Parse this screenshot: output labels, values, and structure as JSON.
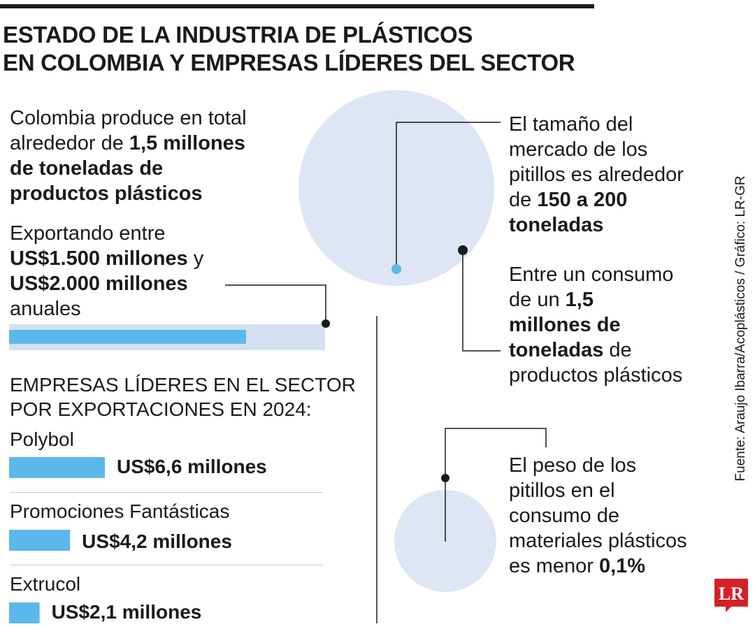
{
  "header": {
    "title_line1": "ESTADO DE LA INDUSTRIA DE PLÁSTICOS",
    "title_line2": "EN COLOMBIA Y EMPRESAS LÍDERES DEL SECTOR"
  },
  "production": {
    "line1": "Colombia produce en total",
    "line2_pre": "alrededor de ",
    "line2_bold": "1,5 millones",
    "line3_bold": "de toneladas de",
    "line4_bold": "productos plásticos"
  },
  "exports": {
    "line1": "Exportando entre",
    "line2_bold": "US$1.500 millones",
    "line2_post": " y",
    "line3_bold": "US$2.000 millones",
    "line4": "anuales",
    "bar_fraction": 0.75
  },
  "straws_market": {
    "line1": "El tamaño del",
    "line2": "mercado de los",
    "line3": "pitillos es alrededor",
    "line4_pre": "de ",
    "line4_bold": "150 a 200",
    "line5_bold": "toneladas"
  },
  "consumption": {
    "line1": "Entre un consumo",
    "line2_pre": "de un ",
    "line2_bold": "1,5",
    "line3_bold": "millones de",
    "line4_bold": "toneladas",
    "line4_post": " de",
    "line5": "productos plásticos"
  },
  "straws_weight": {
    "line1": "El peso de los",
    "line2": "pitillos en el",
    "line3": "consumo de",
    "line4": "materiales plásticos",
    "line5_pre": "es menor ",
    "line5_bold": "0,1%"
  },
  "leaders": {
    "title_line1": "EMPRESAS LÍDERES EN EL SECTOR",
    "title_line2": "POR EXPORTACIONES EN 2024:"
  },
  "chart_data": {
    "type": "bar",
    "title": "EMPRESAS LÍDERES EN EL SECTOR POR EXPORTACIONES EN 2024:",
    "categories": [
      "Polybol",
      "Promociones Fantásticas",
      "Extrucol"
    ],
    "values": [
      6.6,
      4.2,
      2.1
    ],
    "value_labels": [
      "US$6,6 millones",
      "US$4,2 millones",
      "US$2,1 millones"
    ],
    "unit": "US$ millones",
    "orientation": "horizontal",
    "bar_color": "#5bb8ea"
  },
  "colors": {
    "accent_blue": "#5bb8ea",
    "circle_fill": "#dee5f5",
    "ink": "#1a1a1a",
    "logo_red": "#d42127"
  },
  "footer": {
    "source": "Fuente: Araujo Ibarra/Acoplásticos / Gráfico: LR-GR",
    "logo": "LR"
  }
}
